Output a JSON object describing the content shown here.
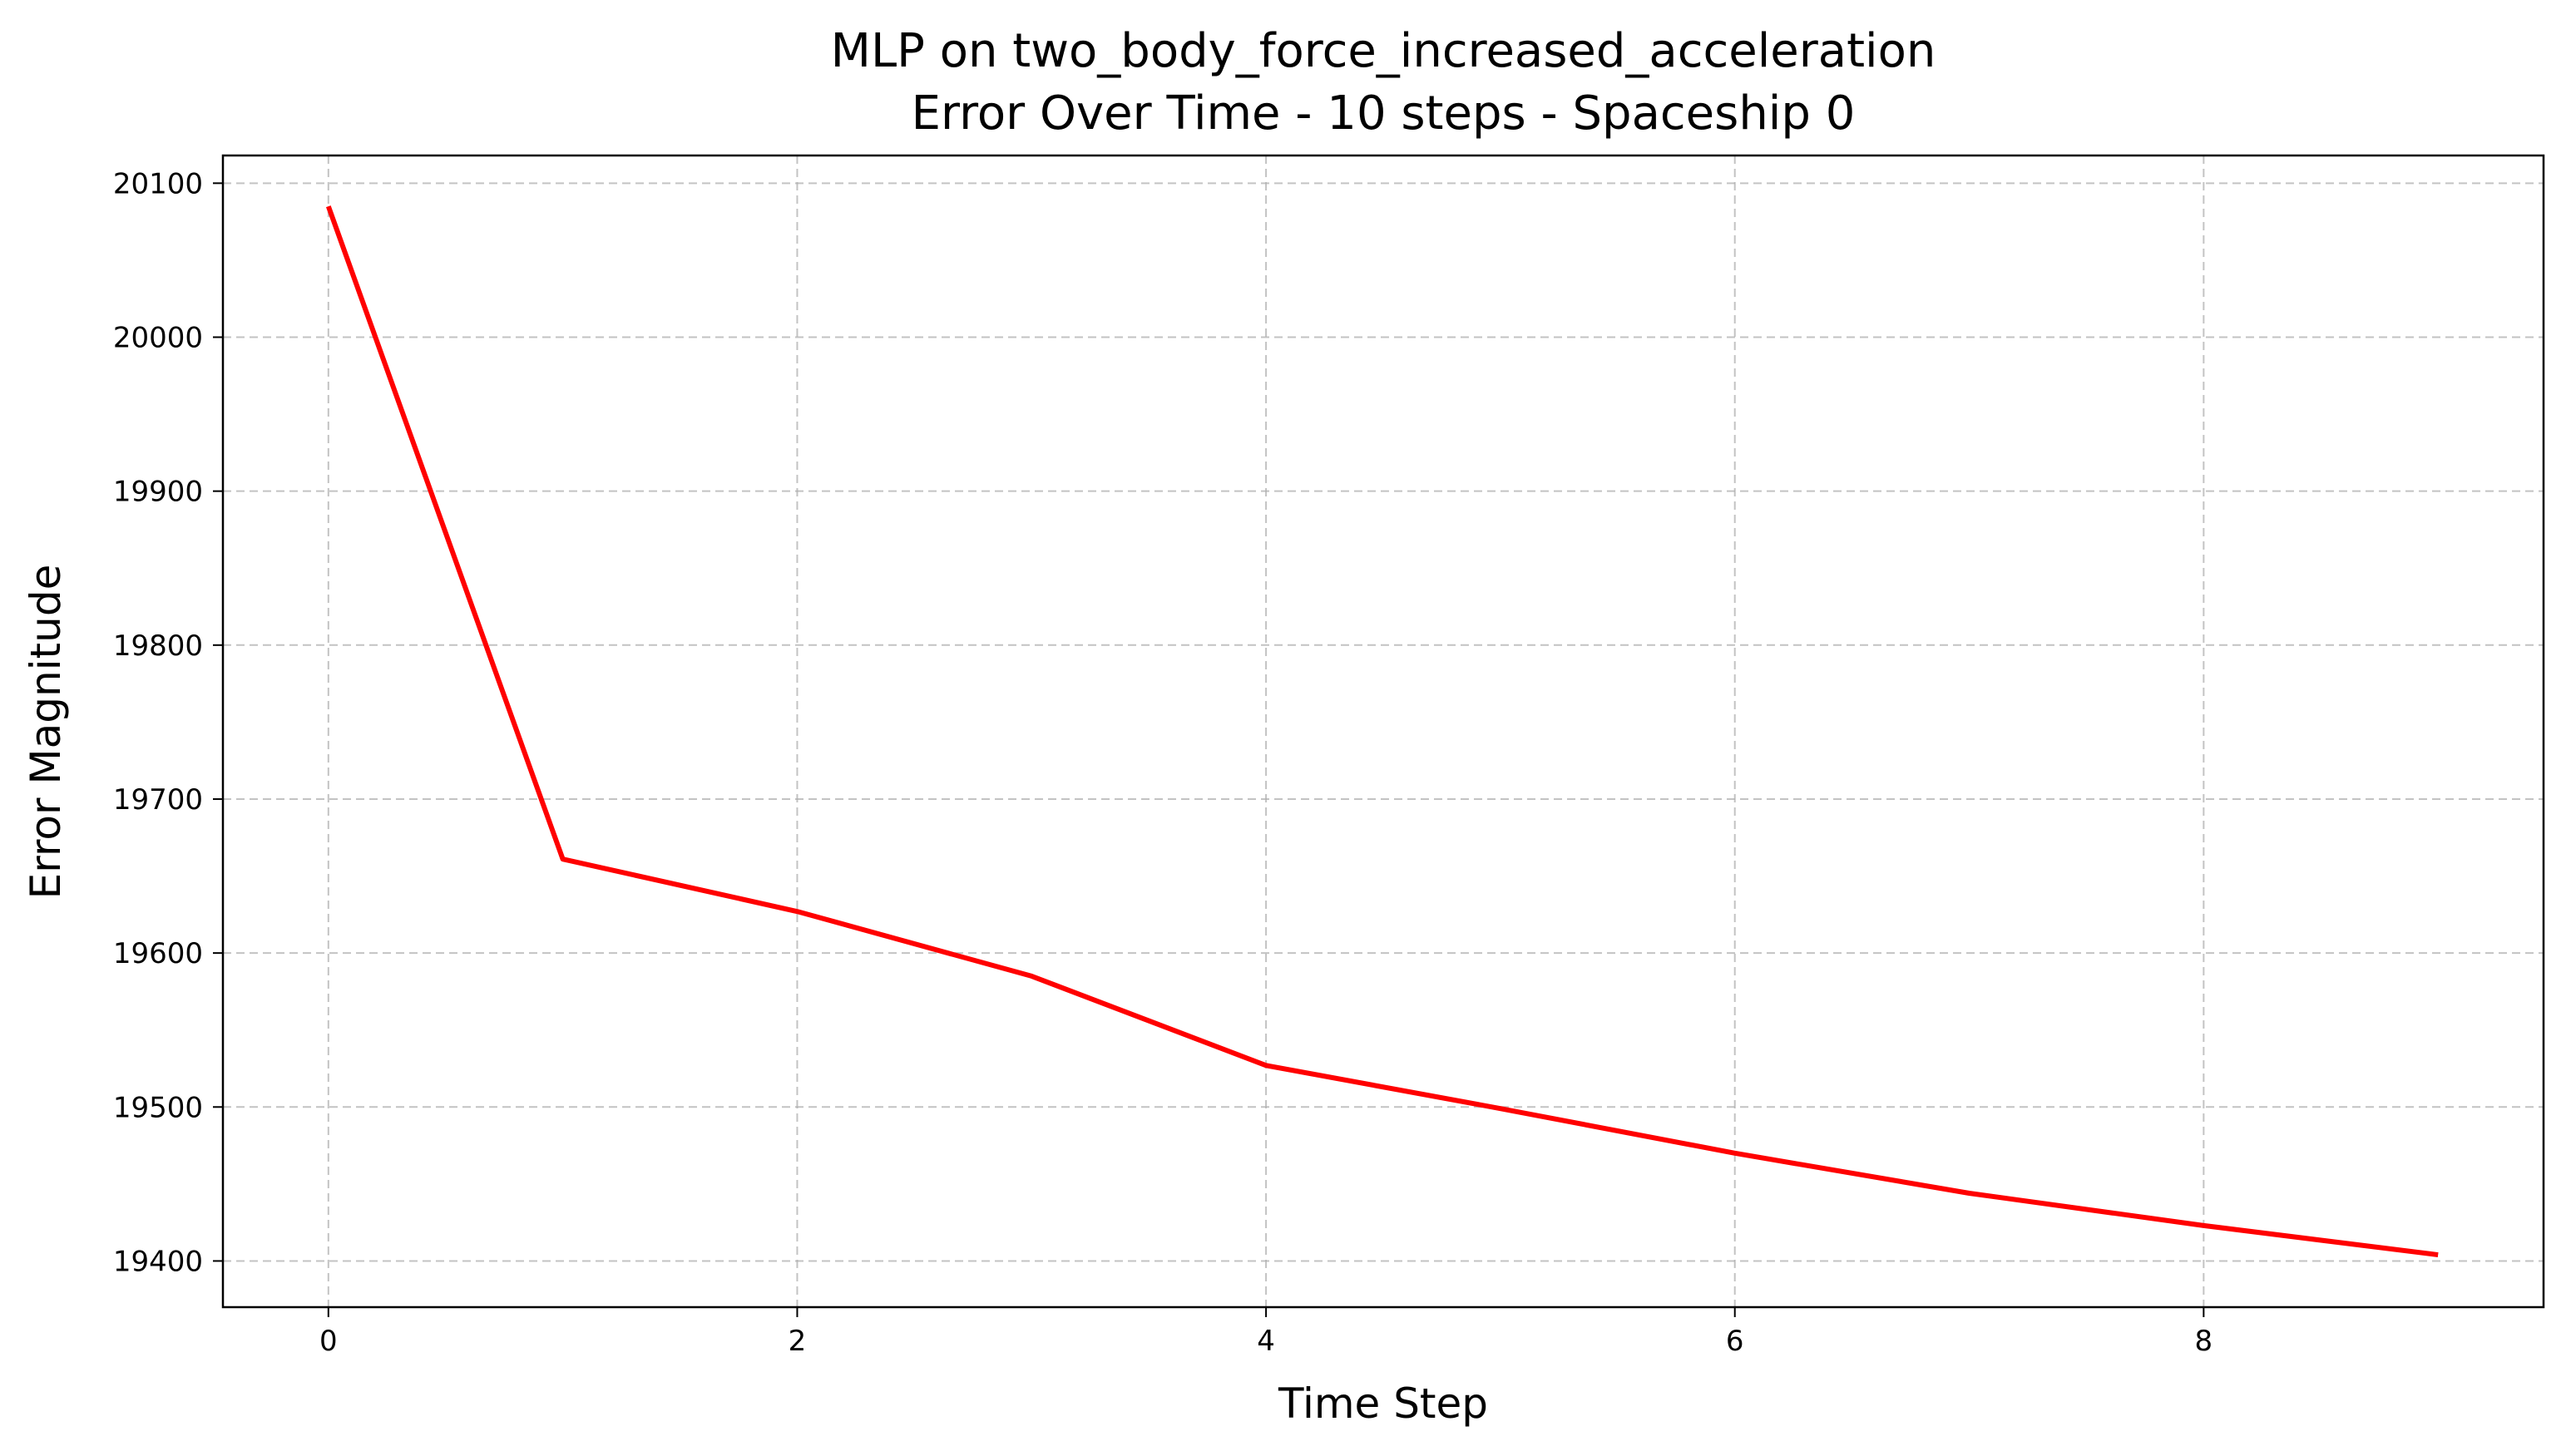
{
  "chart_data": {
    "type": "line",
    "title": "MLP on two_body_force_increased_acceleration",
    "subtitle": "Error Over Time - 10 steps - Spaceship 0",
    "xlabel": "Time Step",
    "ylabel": "Error Magnitude",
    "xlim": [
      -0.45,
      9.45
    ],
    "ylim": [
      19370,
      20118
    ],
    "x_ticks": [
      0,
      2,
      4,
      6,
      8
    ],
    "y_ticks": [
      19400,
      19500,
      19600,
      19700,
      19800,
      19900,
      20000,
      20100
    ],
    "grid": true,
    "legend": "none",
    "series": [
      {
        "color": "#ff0000",
        "x": [
          0,
          1,
          2,
          3,
          4,
          5,
          6,
          7,
          8,
          9
        ],
        "y": [
          20085,
          19661,
          19627,
          19585,
          19527,
          19499,
          19470,
          19444,
          19423,
          19404
        ]
      }
    ]
  }
}
